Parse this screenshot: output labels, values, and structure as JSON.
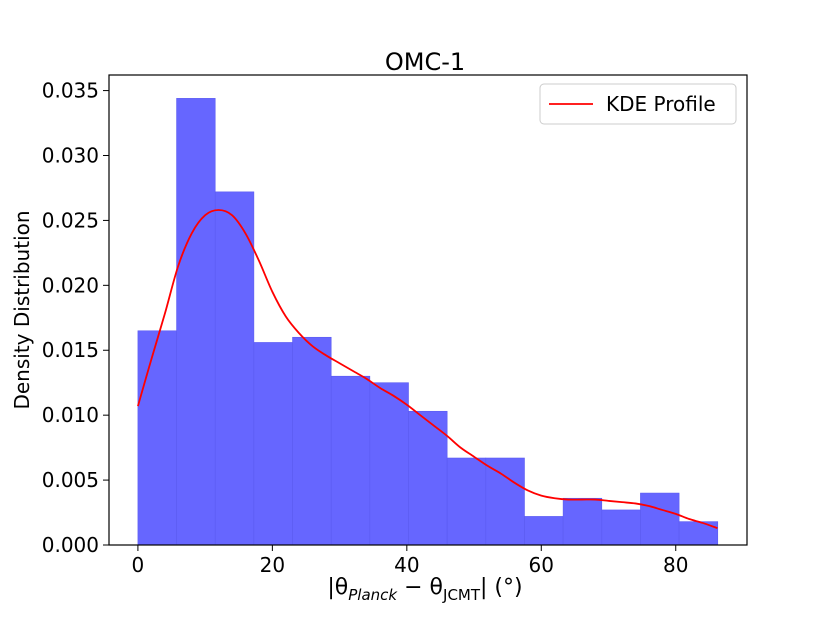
{
  "chart_data": {
    "type": "bar",
    "title": "OMC-1",
    "ylabel": "Density Distribution",
    "xlabel": {
      "prefix": "|θ",
      "sub1": "Planck",
      "minus": " − θ",
      "sub2": "JCMT",
      "suffix": "| (°)"
    },
    "xlim": [
      -4.3,
      90.6
    ],
    "ylim": [
      0,
      0.0362
    ],
    "xticks": [
      0,
      20,
      40,
      60,
      80
    ],
    "xtick_labels": [
      "0",
      "20",
      "40",
      "60",
      "80"
    ],
    "yticks": [
      0,
      0.005,
      0.01,
      0.015,
      0.02,
      0.025,
      0.03,
      0.035
    ],
    "ytick_labels": [
      "0.000",
      "0.005",
      "0.010",
      "0.015",
      "0.020",
      "0.025",
      "0.030",
      "0.035"
    ],
    "bins": [
      {
        "x0": 0.0,
        "x1": 5.75,
        "value": 0.0165
      },
      {
        "x0": 5.75,
        "x1": 11.5,
        "value": 0.0344
      },
      {
        "x0": 11.5,
        "x1": 17.25,
        "value": 0.0272
      },
      {
        "x0": 17.25,
        "x1": 23.0,
        "value": 0.0156
      },
      {
        "x0": 23.0,
        "x1": 28.75,
        "value": 0.016
      },
      {
        "x0": 28.75,
        "x1": 34.5,
        "value": 0.013
      },
      {
        "x0": 34.5,
        "x1": 40.25,
        "value": 0.0125
      },
      {
        "x0": 40.25,
        "x1": 46.0,
        "value": 0.0103
      },
      {
        "x0": 46.0,
        "x1": 51.75,
        "value": 0.0067
      },
      {
        "x0": 51.75,
        "x1": 57.5,
        "value": 0.0067
      },
      {
        "x0": 57.5,
        "x1": 63.25,
        "value": 0.0022
      },
      {
        "x0": 63.25,
        "x1": 69.0,
        "value": 0.0036
      },
      {
        "x0": 69.0,
        "x1": 74.75,
        "value": 0.0027
      },
      {
        "x0": 74.75,
        "x1": 80.5,
        "value": 0.004
      },
      {
        "x0": 80.5,
        "x1": 86.25,
        "value": 0.0018
      }
    ],
    "bar_color": "#6666ff",
    "kde": {
      "name": "KDE Profile",
      "color": "#ff0000",
      "x": [
        0,
        2,
        4,
        6,
        8,
        10,
        12,
        14,
        16,
        18,
        20,
        22,
        24,
        26,
        28,
        30,
        32,
        34,
        36,
        38,
        40,
        42,
        44,
        46,
        48,
        50,
        52,
        54,
        56,
        58,
        60,
        62,
        64,
        66,
        68,
        70,
        72,
        74,
        76,
        78,
        80,
        82,
        84,
        86.2
      ],
      "y": [
        0.0107,
        0.0143,
        0.0178,
        0.0215,
        0.024,
        0.0254,
        0.0258,
        0.0254,
        0.024,
        0.0219,
        0.0195,
        0.0176,
        0.0163,
        0.0153,
        0.0146,
        0.014,
        0.0134,
        0.0128,
        0.0121,
        0.0115,
        0.0108,
        0.01,
        0.0092,
        0.0084,
        0.0075,
        0.0068,
        0.0061,
        0.0055,
        0.0048,
        0.0042,
        0.0038,
        0.0036,
        0.0035,
        0.0035,
        0.0035,
        0.0034,
        0.0033,
        0.0032,
        0.003,
        0.0027,
        0.0024,
        0.002,
        0.0017,
        0.0013
      ]
    },
    "legend": {
      "placement": "top-right",
      "entries": [
        "KDE Profile"
      ]
    },
    "grid": false
  }
}
